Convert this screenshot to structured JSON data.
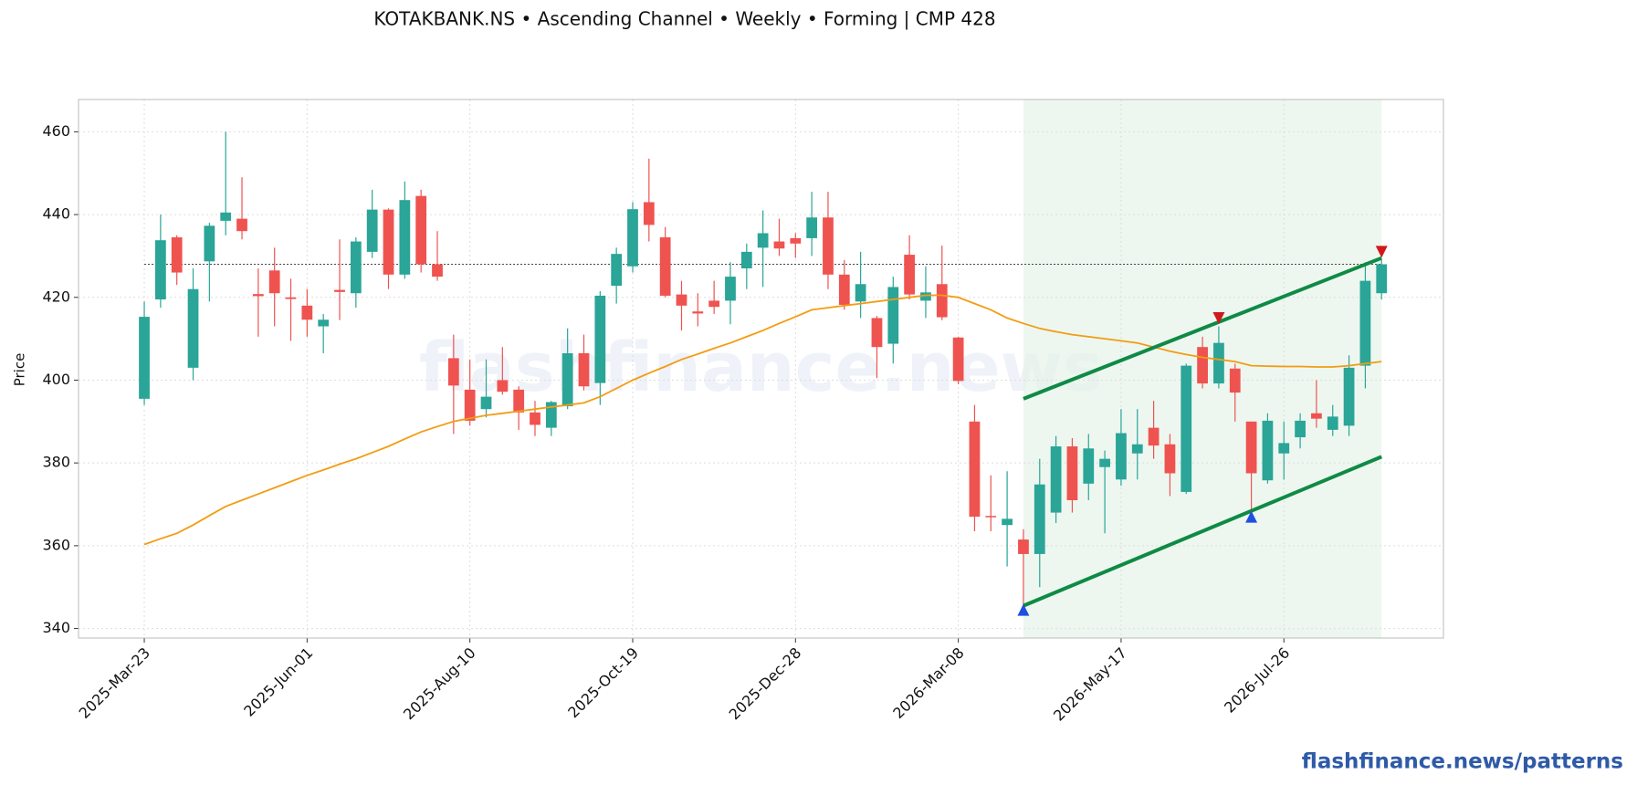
{
  "chart_data": {
    "type": "candlestick",
    "title": "KOTAKBANK.NS  •  Ascending Channel  •  Weekly  •  Forming  |  CMP 428",
    "ylabel": "Price",
    "watermark": "flashfinance.news",
    "footer": "flashfinance.news/patterns",
    "categories": [
      "2025-Mar-23",
      null,
      null,
      null,
      null,
      null,
      null,
      null,
      null,
      null,
      "2025-Jun-01",
      null,
      null,
      null,
      null,
      null,
      null,
      null,
      null,
      null,
      "2025-Aug-10",
      null,
      null,
      null,
      null,
      null,
      null,
      null,
      null,
      null,
      "2025-Oct-19",
      null,
      null,
      null,
      null,
      null,
      null,
      null,
      null,
      null,
      "2025-Dec-28",
      null,
      null,
      null,
      null,
      null,
      null,
      null,
      null,
      null,
      "2026-Mar-08",
      null,
      null,
      null,
      null,
      null,
      null,
      null,
      null,
      null,
      "2026-May-17",
      null,
      null,
      null,
      null,
      null,
      null,
      null,
      null,
      null,
      "2026-Jul-26",
      null,
      null,
      null,
      null,
      null,
      null
    ],
    "open": [
      395.5,
      419.5,
      434.5,
      403,
      428.7,
      438.5,
      439,
      420.8,
      426.5,
      420,
      418,
      413,
      421.8,
      421,
      431,
      441.2,
      425.5,
      444.5,
      428,
      405.3,
      397.7,
      393,
      400,
      397.7,
      392.2,
      388.5,
      393.7,
      406.5,
      399.3,
      422.8,
      427.5,
      443,
      434.5,
      420.7,
      416.6,
      419.2,
      419.2,
      427,
      432,
      433.5,
      434.3,
      434.3,
      439.3,
      425.5,
      419,
      415,
      408.8,
      430.3,
      419.2,
      423.2,
      410.3,
      390,
      367.2,
      365,
      361.5,
      358,
      368,
      384,
      375,
      379,
      376,
      382.3,
      388.5,
      384.5,
      373,
      408,
      399.2,
      402.8,
      390,
      375.8,
      382.3,
      386.2,
      392,
      388,
      389,
      403.5,
      421
    ],
    "high": [
      419,
      440,
      435,
      427,
      438,
      460,
      449,
      427,
      432,
      424.5,
      422,
      416,
      434,
      434.5,
      446,
      441.5,
      448,
      446,
      436,
      411,
      405,
      405,
      408,
      398.5,
      395,
      395,
      412.5,
      411,
      421.5,
      432,
      443,
      453.5,
      437,
      424,
      421,
      424,
      428.5,
      433,
      441,
      439,
      435.5,
      445.5,
      445.5,
      429,
      431,
      415.5,
      425,
      435,
      427.5,
      432.5,
      410.5,
      394,
      377,
      378,
      364,
      381,
      386.5,
      386,
      387,
      383,
      393,
      393,
      395,
      387,
      404,
      410.5,
      413,
      404,
      390,
      392,
      390,
      392,
      400,
      394,
      406,
      428.5,
      429
    ],
    "low": [
      394,
      417.5,
      423,
      400,
      419,
      435,
      434,
      410.5,
      413,
      409.5,
      410.5,
      406.5,
      414.5,
      417.5,
      429.5,
      422,
      424.5,
      426,
      424,
      387,
      389,
      391,
      396.5,
      388,
      386.5,
      386.5,
      393,
      397.5,
      394,
      418.5,
      426,
      433.5,
      420,
      412,
      413,
      416,
      413.5,
      422,
      422.5,
      430,
      429.5,
      430,
      422,
      417,
      415,
      400.5,
      404,
      419.5,
      415,
      414.5,
      399,
      363.5,
      363.5,
      355,
      345,
      350,
      365.5,
      368,
      371,
      363,
      374.5,
      376,
      381,
      372,
      372.5,
      398,
      398,
      390,
      368,
      375,
      376,
      383.5,
      388.5,
      386.5,
      386.5,
      398,
      419.5
    ],
    "close": [
      415.3,
      433.8,
      426,
      422,
      437.3,
      440.5,
      436,
      420.3,
      421,
      419.6,
      414.6,
      414.6,
      421.3,
      433.5,
      441.2,
      425.5,
      443.5,
      428,
      425,
      398.7,
      390.2,
      396,
      397.2,
      392.2,
      389.2,
      394.7,
      406.5,
      398.5,
      420.4,
      430.5,
      441.3,
      437.5,
      420.4,
      418,
      416.1,
      417.7,
      425,
      431,
      435.5,
      431.8,
      433,
      439.3,
      425.5,
      418.2,
      423.2,
      408,
      422.5,
      420.7,
      421.2,
      415.2,
      399.8,
      367,
      367,
      366.5,
      358,
      374.8,
      384,
      371,
      383.5,
      381,
      387.2,
      384.5,
      384.2,
      377.5,
      403.5,
      399.2,
      409,
      397,
      377.5,
      390.2,
      384.8,
      390.2,
      390.7,
      391.2,
      403,
      424,
      428
    ],
    "up_color": "#2aa597",
    "down_color": "#ef5350",
    "ma": {
      "color": "#f39c12",
      "values": [
        360.3,
        361.7,
        363,
        365,
        367.3,
        369.5,
        371,
        372.5,
        374,
        375.5,
        377,
        378.3,
        379.7,
        381,
        382.5,
        384,
        385.8,
        387.5,
        388.8,
        390,
        390.8,
        391.5,
        392,
        392.5,
        393,
        393.5,
        394,
        394.5,
        396,
        398,
        400,
        401.7,
        403.3,
        405,
        406.3,
        407.7,
        409,
        410.5,
        412,
        413.7,
        415.3,
        417,
        417.5,
        418,
        418.5,
        419,
        419.5,
        420,
        420.5,
        420.5,
        420,
        418.5,
        417,
        415,
        413.7,
        412.5,
        411.7,
        411,
        410.5,
        410,
        409.5,
        409,
        408,
        407,
        406.2,
        405.5,
        405,
        404.5,
        403.5,
        403.4,
        403.3,
        403.3,
        403.2,
        403.2,
        403.5,
        404,
        404.5
      ]
    },
    "hline": 428,
    "zone": [
      54,
      76
    ],
    "zone_color": "#e6f4ea",
    "channel": {
      "color": "#0f8a45",
      "upper": {
        "x": [
          54,
          76
        ],
        "y": [
          395.5,
          429.5
        ]
      },
      "lower": {
        "x": [
          54,
          76
        ],
        "y": [
          345.5,
          381.5
        ]
      }
    },
    "markers": [
      {
        "x": 54,
        "y": 344.5,
        "kind": "up",
        "color": "#1f4fe0"
      },
      {
        "x": 68,
        "y": 367,
        "kind": "up",
        "color": "#1f4fe0"
      },
      {
        "x": 66,
        "y": 415,
        "kind": "down",
        "color": "#d0191c"
      },
      {
        "x": 76,
        "y": 431,
        "kind": "down",
        "color": "#d0191c"
      }
    ],
    "xlim": [
      -4.04,
      79.8
    ],
    "ylim": [
      337.7,
      467.8
    ],
    "yticks": [
      340,
      360,
      380,
      400,
      420,
      440,
      460
    ],
    "grid": true
  }
}
